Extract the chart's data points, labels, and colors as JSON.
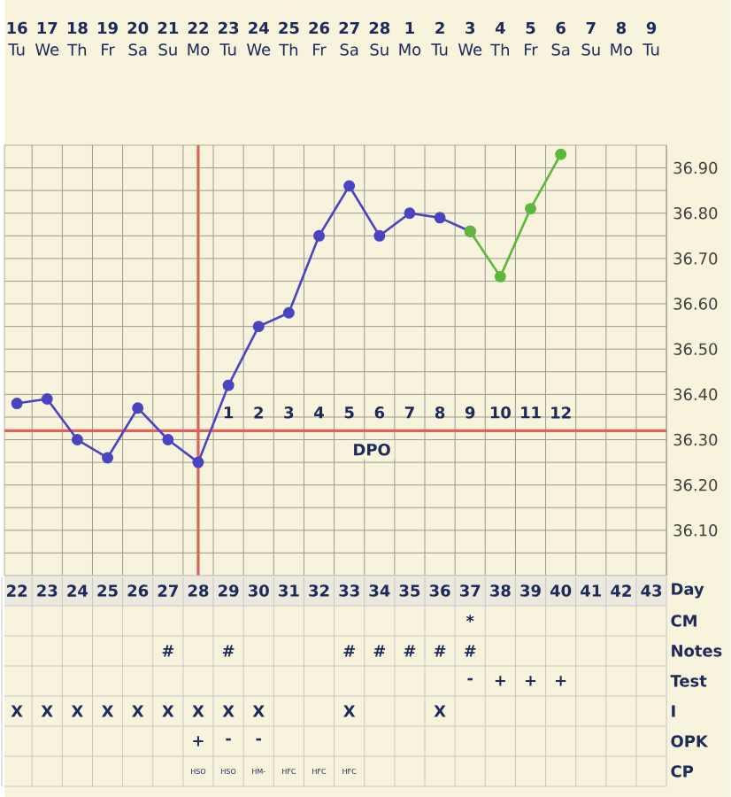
{
  "chart_data": {
    "type": "line",
    "categories": [
      "16",
      "17",
      "18",
      "19",
      "20",
      "21",
      "22",
      "23",
      "24",
      "25",
      "26",
      "27",
      "28",
      "1",
      "2",
      "3",
      "4",
      "5",
      "6",
      "7",
      "8",
      "9"
    ],
    "series": [
      {
        "color": "#4a44c2",
        "values": [
          36.38,
          36.39,
          36.3,
          36.26,
          36.37,
          36.3,
          36.25,
          36.42,
          36.55,
          36.58,
          36.75,
          36.86,
          36.75,
          36.8,
          36.79,
          36.76,
          null,
          null,
          null,
          null,
          null,
          null
        ]
      },
      {
        "color": "#5cb83a",
        "values": [
          null,
          null,
          null,
          null,
          null,
          null,
          null,
          null,
          null,
          null,
          null,
          null,
          null,
          null,
          null,
          36.76,
          36.66,
          36.81,
          36.93,
          null,
          null,
          null
        ]
      }
    ],
    "ylim": [
      36.0,
      36.95
    ],
    "yticks": [
      {
        "value": 36.05,
        "label": null
      },
      {
        "value": 36.1,
        "label": "36.10"
      },
      {
        "value": 36.15,
        "label": null
      },
      {
        "value": 36.2,
        "label": "36.20"
      },
      {
        "value": 36.25,
        "label": null
      },
      {
        "value": 36.3,
        "label": "36.30"
      },
      {
        "value": 36.35,
        "label": null
      },
      {
        "value": 36.4,
        "label": "36.40"
      },
      {
        "value": 36.45,
        "label": null
      },
      {
        "value": 36.5,
        "label": "36.50"
      },
      {
        "value": 36.55,
        "label": null
      },
      {
        "value": 36.6,
        "label": "36.60"
      },
      {
        "value": 36.65,
        "label": null
      },
      {
        "value": 36.7,
        "label": "36.70"
      },
      {
        "value": 36.75,
        "label": null
      },
      {
        "value": 36.8,
        "label": "36.80"
      },
      {
        "value": 36.85,
        "label": null
      },
      {
        "value": 36.9,
        "label": "36.90"
      }
    ],
    "grid": true,
    "marker": "circle",
    "line_style": "solid",
    "ref_lines": [
      {
        "axis": "x",
        "value": "22",
        "color": "#d9645a"
      },
      {
        "axis": "y",
        "value": 36.32,
        "label": "DPO",
        "color": "#d9645a"
      }
    ],
    "annotations": [
      "Tu",
      "We",
      "Th",
      "Fr",
      "Sa",
      "Su",
      "Mo",
      "Tu",
      "We",
      "Th",
      "Fr",
      "Sa",
      "Su",
      "Mo",
      "Tu",
      "We",
      "Th",
      "Fr",
      "Sa",
      "Su",
      "Mo",
      "Tu",
      "1",
      "2",
      "3",
      "4",
      "5",
      "6",
      "7",
      "8",
      "9",
      "10",
      "11",
      "12",
      "22",
      "23",
      "24",
      "25",
      "26",
      "27",
      "28",
      "29",
      "30",
      "31",
      "32",
      "33",
      "34",
      "35",
      "36",
      "37",
      "38",
      "39",
      "40",
      "41",
      "42",
      "43",
      "Day",
      "*",
      "CM",
      "#",
      "#",
      "#",
      "#",
      "#",
      "#",
      "#",
      "Notes",
      "-",
      "+",
      "+",
      "+",
      "Test",
      "X",
      "X",
      "X",
      "X",
      "X",
      "X",
      "X",
      "X",
      "X",
      "X",
      "X",
      "I",
      "+",
      "-",
      "-",
      "OPK",
      "HSO",
      "HSO",
      "HM-",
      "HFC",
      "HFC",
      "HFC",
      "CP"
    ]
  }
}
